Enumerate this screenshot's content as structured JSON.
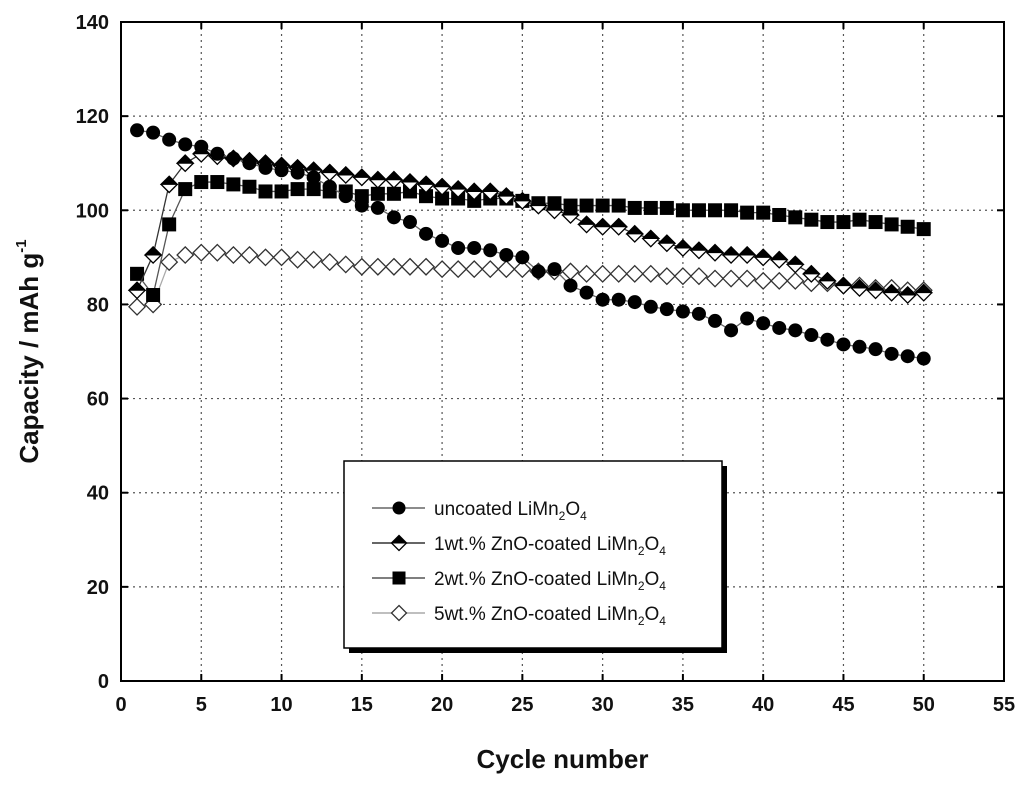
{
  "chart_data": {
    "type": "line",
    "xlabel": "Cycle number",
    "ylabel_main": "Capacity / mAh g",
    "ylabel_sup": "-1",
    "xlim": [
      0,
      55
    ],
    "ylim": [
      0,
      140
    ],
    "xticks": [
      0,
      5,
      10,
      15,
      20,
      25,
      30,
      35,
      40,
      45,
      50,
      55
    ],
    "yticks": [
      0,
      20,
      40,
      60,
      80,
      100,
      120,
      140
    ],
    "grid": true,
    "legend_position": "lower-center",
    "series": [
      {
        "name": "uncoated LiMn2O4",
        "label_parts": [
          {
            "t": "uncoated LiMn"
          },
          {
            "t": "2",
            "sub": true
          },
          {
            "t": "O"
          },
          {
            "t": "4",
            "sub": true
          }
        ],
        "marker": "circle",
        "fill": "#000000",
        "line": "#666666",
        "x": [
          1,
          2,
          3,
          4,
          5,
          6,
          7,
          8,
          9,
          10,
          11,
          12,
          13,
          14,
          15,
          16,
          17,
          18,
          19,
          20,
          21,
          22,
          23,
          24,
          25,
          26,
          27,
          28,
          29,
          30,
          31,
          32,
          33,
          34,
          35,
          36,
          37,
          38,
          39,
          40,
          41,
          42,
          43,
          44,
          45,
          46,
          47,
          48,
          49,
          50
        ],
        "values": [
          117,
          116.5,
          115,
          114,
          113.5,
          112,
          111,
          110,
          109,
          108.5,
          108,
          107,
          105,
          103,
          101,
          100.5,
          98.5,
          97.5,
          95,
          93.5,
          92,
          92,
          91.5,
          90.5,
          90,
          87,
          87.5,
          84,
          82.5,
          81,
          81,
          80.5,
          79.5,
          79,
          78.5,
          78,
          76.5,
          74.5,
          77,
          76,
          75,
          74.5,
          73.5,
          72.5,
          71.5,
          71,
          70.5,
          69.5,
          69,
          68.5
        ]
      },
      {
        "name": "1wt.% ZnO-coated LiMn2O4",
        "label_parts": [
          {
            "t": "1wt.% ZnO-coated LiMn"
          },
          {
            "t": "2",
            "sub": true
          },
          {
            "t": "O"
          },
          {
            "t": "4",
            "sub": true
          }
        ],
        "marker": "half-diamond",
        "fill": "#000000",
        "line": "#333333",
        "x": [
          1,
          2,
          3,
          4,
          5,
          6,
          7,
          8,
          9,
          10,
          11,
          12,
          13,
          14,
          15,
          16,
          17,
          18,
          19,
          20,
          21,
          22,
          23,
          24,
          25,
          26,
          27,
          28,
          29,
          30,
          31,
          32,
          33,
          34,
          35,
          36,
          37,
          38,
          39,
          40,
          41,
          42,
          43,
          44,
          45,
          46,
          47,
          48,
          49,
          50
        ],
        "values": [
          83,
          90.5,
          105.5,
          110,
          112,
          111.5,
          111,
          110.5,
          110,
          109.5,
          109,
          108.5,
          108,
          107.5,
          107,
          106.5,
          106.5,
          106,
          105.5,
          105,
          104.5,
          104,
          104,
          103,
          102,
          101,
          100,
          99,
          97,
          96.5,
          96.5,
          95,
          94,
          93,
          92,
          91.5,
          91,
          90.5,
          90.5,
          90,
          89.5,
          88.5,
          86.5,
          85,
          84,
          83.5,
          83,
          82.5,
          82,
          82.5
        ]
      },
      {
        "name": "2wt.% ZnO-coated LiMn2O4",
        "label_parts": [
          {
            "t": "2wt.% ZnO-coated LiMn"
          },
          {
            "t": "2",
            "sub": true
          },
          {
            "t": "O"
          },
          {
            "t": "4",
            "sub": true
          }
        ],
        "marker": "square",
        "fill": "#000000",
        "line": "#555555",
        "x": [
          1,
          2,
          3,
          4,
          5,
          6,
          7,
          8,
          9,
          10,
          11,
          12,
          13,
          14,
          15,
          16,
          17,
          18,
          19,
          20,
          21,
          22,
          23,
          24,
          25,
          26,
          27,
          28,
          29,
          30,
          31,
          32,
          33,
          34,
          35,
          36,
          37,
          38,
          39,
          40,
          41,
          42,
          43,
          44,
          45,
          46,
          47,
          48,
          49,
          50
        ],
        "values": [
          86.5,
          82,
          97,
          104.5,
          106,
          106,
          105.5,
          105,
          104,
          104,
          104.5,
          104.5,
          104,
          104,
          103,
          103.5,
          103.5,
          104,
          103,
          102.5,
          102.5,
          102,
          102.5,
          102.5,
          102,
          101.5,
          101.5,
          101,
          101,
          101,
          101,
          100.5,
          100.5,
          100.5,
          100,
          100,
          100,
          100,
          99.5,
          99.5,
          99,
          98.5,
          98,
          97.5,
          97.5,
          98,
          97.5,
          97,
          96.5,
          96
        ]
      },
      {
        "name": "5wt.% ZnO-coated LiMn2O4",
        "label_parts": [
          {
            "t": "5wt.% ZnO-coated LiMn"
          },
          {
            "t": "2",
            "sub": true
          },
          {
            "t": "O"
          },
          {
            "t": "4",
            "sub": true
          }
        ],
        "marker": "diamond-open",
        "fill": "#ffffff",
        "line": "#aaaaaa",
        "x": [
          1,
          2,
          3,
          4,
          5,
          6,
          7,
          8,
          9,
          10,
          11,
          12,
          13,
          14,
          15,
          16,
          17,
          18,
          19,
          20,
          21,
          22,
          23,
          24,
          25,
          26,
          27,
          28,
          29,
          30,
          31,
          32,
          33,
          34,
          35,
          36,
          37,
          38,
          39,
          40,
          41,
          42,
          43,
          44,
          45,
          46,
          47,
          48,
          49,
          50
        ],
        "values": [
          79.5,
          80,
          89,
          90.5,
          91,
          91,
          90.5,
          90.5,
          90,
          90,
          89.5,
          89.5,
          89,
          88.5,
          88,
          88,
          88,
          88,
          88,
          87.5,
          87.5,
          87.5,
          87.5,
          87.5,
          87.5,
          87,
          87,
          87,
          86.5,
          86.5,
          86.5,
          86.5,
          86.5,
          86,
          86,
          86,
          85.5,
          85.5,
          85.5,
          85,
          85,
          85,
          84.5,
          84.5,
          84,
          84,
          83.5,
          83.5,
          83,
          83
        ]
      }
    ]
  }
}
